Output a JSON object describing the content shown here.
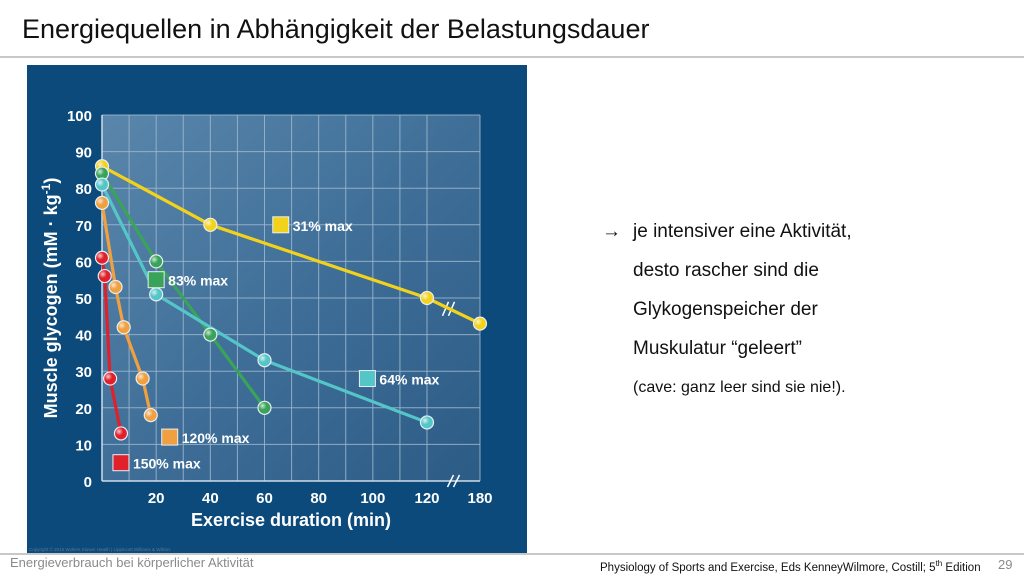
{
  "slide": {
    "title": "Energiequellen in Abhängigkeit der Belastungsdauer",
    "bullet_arrow": "→",
    "bullet_lines": [
      "je intensiver eine Aktivität,",
      "desto rascher sind die",
      "Glykogenspeicher der",
      "Muskulatur “geleert”"
    ],
    "bullet_note": "(cave:  ganz leer sind sie nie!).",
    "footer_left": "Energieverbrauch bei körperlicher Aktivität",
    "footer_source_pre": "Physiology of Sports and Exercise, Eds KenneyWilmore, Costill; 5",
    "footer_source_sup": "th",
    "footer_source_post": " Edition",
    "page_number": "29",
    "copyright": "Copyright © 2015 Wolters Kluwer Health | Lippincott Williams & Wilkins"
  },
  "chart_data": {
    "type": "line",
    "xlabel": "Exercise duration (min)",
    "ylabel": "Muscle glycogen (mM · kg-1)",
    "ylabel_main": "Muscle glycogen (mM · kg",
    "ylabel_sup": "-1",
    "ylabel_end": ")",
    "xlim": [
      0,
      180
    ],
    "ylim": [
      0,
      100
    ],
    "x_ticks": [
      "0",
      "20",
      "40",
      "60",
      "80",
      "100",
      "120",
      "180"
    ],
    "y_ticks": [
      "0",
      "10",
      "20",
      "30",
      "40",
      "50",
      "60",
      "70",
      "80",
      "90",
      "100"
    ],
    "x_axis_break": "between 120 and 180",
    "grid": true,
    "colors": {
      "background": "#0b4a7a",
      "plot_area": "#3d6f98",
      "grid": "#9fb8cf",
      "axis_text": "#ffffff"
    },
    "series": [
      {
        "name": "31% max",
        "color": "#f3d21c",
        "x": [
          0,
          40,
          120,
          180
        ],
        "y": [
          86,
          70,
          50,
          43
        ]
      },
      {
        "name": "83% max",
        "color": "#3aa35a",
        "x": [
          0,
          20,
          40,
          60
        ],
        "y": [
          84,
          60,
          40,
          20
        ]
      },
      {
        "name": "64% max",
        "color": "#55c6c8",
        "x": [
          0,
          20,
          60,
          120
        ],
        "y": [
          81,
          51,
          33,
          16
        ]
      },
      {
        "name": "120% max",
        "color": "#f0a040",
        "x": [
          0,
          5,
          8,
          15,
          18
        ],
        "y": [
          76,
          53,
          42,
          28,
          18
        ]
      },
      {
        "name": "150% max",
        "color": "#e0202a",
        "x": [
          0,
          1,
          3,
          7
        ],
        "y": [
          61,
          56,
          28,
          13
        ]
      }
    ]
  }
}
